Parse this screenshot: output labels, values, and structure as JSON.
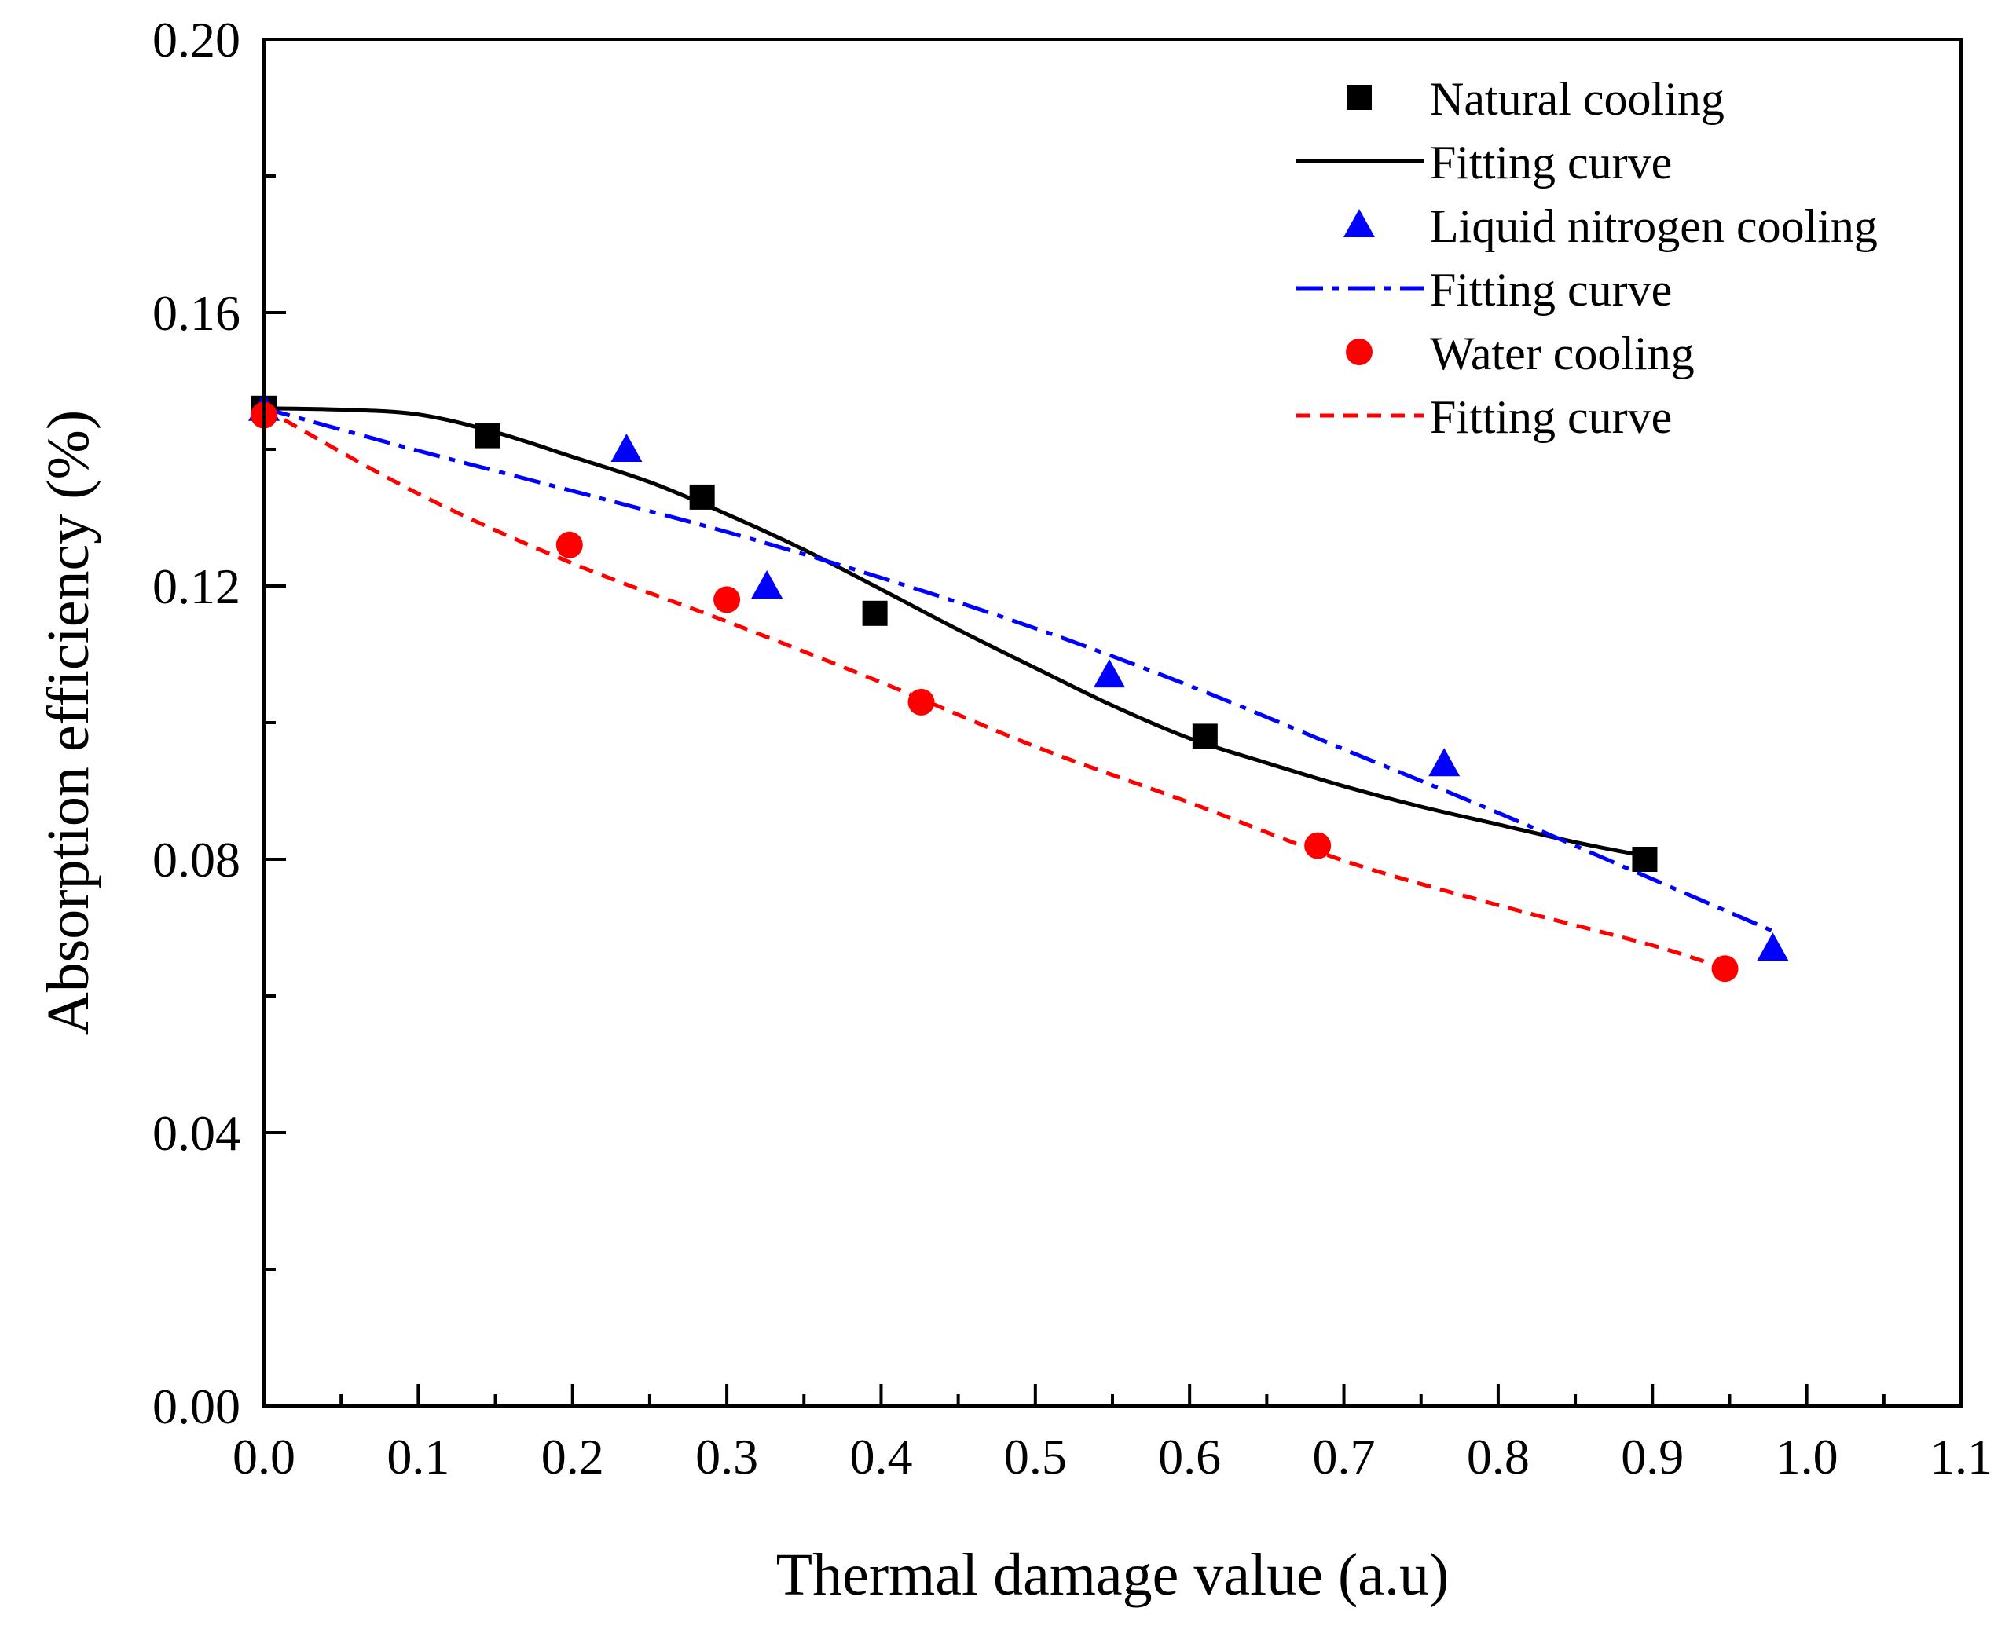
{
  "chart_data": {
    "type": "scatter",
    "title": "",
    "xlabel": "Thermal damage value (a.u)",
    "ylabel": "Absorption efficiency (%)",
    "xlim": [
      0.0,
      1.1
    ],
    "ylim": [
      0.0,
      0.2
    ],
    "xticks": [
      "0.0",
      "0.1",
      "0.2",
      "0.3",
      "0.4",
      "0.5",
      "0.6",
      "0.7",
      "0.8",
      "0.9",
      "1.0",
      "1.1"
    ],
    "yticks": [
      "0.00",
      "0.04",
      "0.08",
      "0.12",
      "0.16",
      "0.20"
    ],
    "xtick_values": [
      0.0,
      0.1,
      0.2,
      0.3,
      0.4,
      0.5,
      0.6,
      0.7,
      0.8,
      0.9,
      1.0,
      1.1
    ],
    "ytick_values": [
      0.0,
      0.04,
      0.08,
      0.12,
      0.16,
      0.2
    ],
    "grid": false,
    "legend_position": "top-right",
    "series": [
      {
        "name": "Natural cooling",
        "marker": "square",
        "color": "#000000",
        "x": [
          0.0,
          0.145,
          0.284,
          0.396,
          0.61,
          0.895
        ],
        "y": [
          0.146,
          0.142,
          0.133,
          0.116,
          0.098,
          0.08
        ],
        "fit": {
          "name": "Fitting curve",
          "style": "solid",
          "x": [
            0.0,
            0.05,
            0.1,
            0.15,
            0.2,
            0.25,
            0.3,
            0.35,
            0.4,
            0.45,
            0.5,
            0.55,
            0.6,
            0.65,
            0.7,
            0.75,
            0.8,
            0.85,
            0.895
          ],
          "y": [
            0.146,
            0.1458,
            0.1451,
            0.1425,
            0.1389,
            0.1352,
            0.1305,
            0.1253,
            0.1195,
            0.1136,
            0.108,
            0.1025,
            0.0977,
            0.0941,
            0.0907,
            0.0877,
            0.0851,
            0.0825,
            0.0805
          ]
        }
      },
      {
        "name": "Liquid nitrogen cooling",
        "marker": "triangle",
        "color": "#0000ff",
        "x": [
          0.0,
          0.235,
          0.326,
          0.548,
          0.765,
          0.978
        ],
        "y": [
          0.146,
          0.14,
          0.12,
          0.107,
          0.094,
          0.067
        ],
        "fit": {
          "name": "Fitting curve",
          "style": "dashdot",
          "x": [
            0.0,
            0.1,
            0.2,
            0.3,
            0.4,
            0.5,
            0.6,
            0.7,
            0.8,
            0.9,
            0.978
          ],
          "y": [
            0.146,
            0.1398,
            0.1339,
            0.1279,
            0.1212,
            0.1138,
            0.1054,
            0.0961,
            0.0868,
            0.0771,
            0.0695
          ]
        }
      },
      {
        "name": "Water cooling",
        "marker": "circle",
        "color": "#ff0000",
        "x": [
          0.0,
          0.198,
          0.3,
          0.426,
          0.683,
          0.947
        ],
        "y": [
          0.145,
          0.126,
          0.118,
          0.103,
          0.082,
          0.064
        ],
        "fit": {
          "name": "Fitting curve",
          "style": "dashed",
          "x": [
            0.0,
            0.1,
            0.2,
            0.3,
            0.4,
            0.5,
            0.6,
            0.7,
            0.8,
            0.9,
            0.947
          ],
          "y": [
            0.146,
            0.1335,
            0.1233,
            0.1148,
            0.1059,
            0.0965,
            0.0883,
            0.0798,
            0.0733,
            0.0674,
            0.064
          ]
        }
      }
    ],
    "legend": [
      {
        "label": "Natural cooling",
        "kind": "marker",
        "series": 0
      },
      {
        "label": "Fitting curve",
        "kind": "line",
        "series": 0
      },
      {
        "label": "Liquid nitrogen cooling",
        "kind": "marker",
        "series": 1
      },
      {
        "label": "Fitting curve",
        "kind": "line",
        "series": 1
      },
      {
        "label": "Water cooling",
        "kind": "marker",
        "series": 2
      },
      {
        "label": "Fitting curve",
        "kind": "line",
        "series": 2
      }
    ]
  }
}
